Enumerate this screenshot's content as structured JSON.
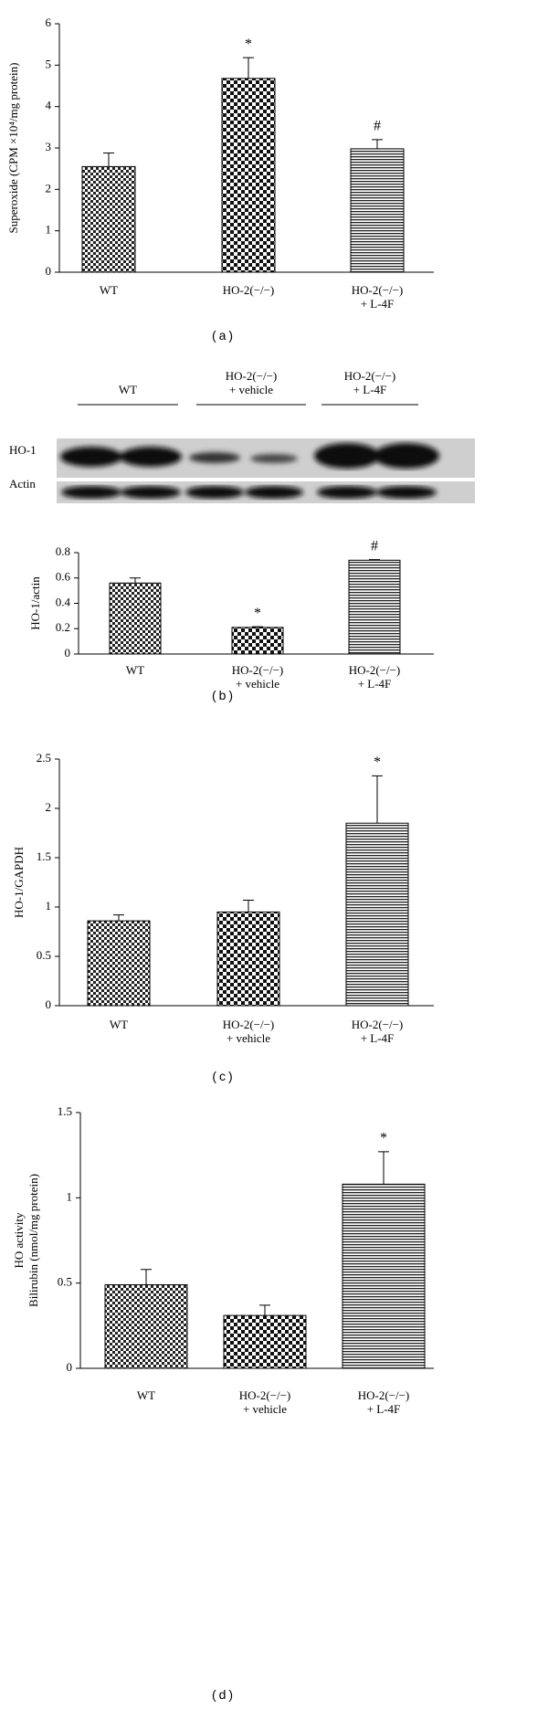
{
  "chart_data": [
    {
      "type": "bar",
      "panel_label": "(a)",
      "ylabel": "Superoxide (CPM ×10⁴/mg protein)",
      "categories": [
        "WT",
        "HO-2(−/−)",
        "HO-2(−/−)\n+ L-4F"
      ],
      "values": [
        2.55,
        4.68,
        2.98
      ],
      "errors": [
        0.33,
        0.5,
        0.22
      ],
      "markers": [
        null,
        "*",
        "#"
      ],
      "ylim": [
        0,
        6
      ],
      "yticks": [
        0,
        1,
        2,
        3,
        4,
        5,
        6
      ]
    },
    {
      "type": "bar",
      "panel_label": "(b)",
      "ylabel": "HO-1/actin",
      "blot_rows": [
        "HO-1",
        "Actin"
      ],
      "categories": [
        "WT",
        "HO-2(−/−)\n+ vehicle",
        "HO-2(−/−)\n+ L-4F"
      ],
      "values": [
        0.56,
        0.21,
        0.74
      ],
      "errors": [
        0.04,
        0.005,
        0.005
      ],
      "markers": [
        null,
        "*",
        "#"
      ],
      "ylim": [
        0,
        0.8
      ],
      "yticks": [
        0,
        0.2,
        0.4,
        0.6,
        0.8
      ]
    },
    {
      "type": "bar",
      "panel_label": "(c)",
      "ylabel": "HO-1/GAPDH",
      "categories": [
        "WT",
        "HO-2(−/−)\n+ vehicle",
        "HO-2(−/−)\n+ L-4F"
      ],
      "values": [
        0.86,
        0.95,
        1.85
      ],
      "errors": [
        0.06,
        0.12,
        0.48
      ],
      "markers": [
        null,
        null,
        "*"
      ],
      "ylim": [
        0,
        2.5
      ],
      "yticks": [
        0,
        0.5,
        1,
        1.5,
        2,
        2.5
      ]
    },
    {
      "type": "bar",
      "panel_label": "(d)",
      "ylabel": [
        "HO activity",
        "Bilirubin (nmol/mg protein)"
      ],
      "categories": [
        "WT",
        "HO-2(−/−)\n+ vehicle",
        "HO-2(−/−)\n+ L-4F"
      ],
      "values": [
        0.49,
        0.31,
        1.08
      ],
      "errors": [
        0.09,
        0.06,
        0.19
      ],
      "markers": [
        null,
        null,
        "*"
      ],
      "ylim": [
        0,
        1.5
      ],
      "yticks": [
        0,
        0.5,
        1,
        1.5
      ]
    }
  ]
}
